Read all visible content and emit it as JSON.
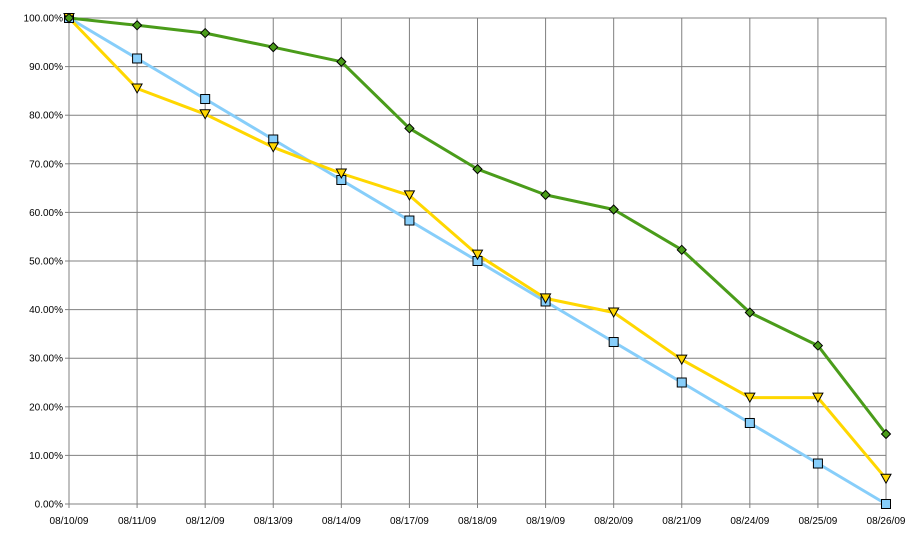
{
  "chart_data": {
    "type": "line",
    "title": "",
    "xlabel": "",
    "ylabel": "",
    "categories": [
      "08/10/09",
      "08/11/09",
      "08/12/09",
      "08/13/09",
      "08/14/09",
      "08/17/09",
      "08/18/09",
      "08/19/09",
      "08/20/09",
      "08/21/09",
      "08/24/09",
      "08/25/09",
      "08/26/09"
    ],
    "yticks": [
      "0.00%",
      "10.00%",
      "20.00%",
      "30.00%",
      "40.00%",
      "50.00%",
      "60.00%",
      "70.00%",
      "80.00%",
      "90.00%",
      "100.00%"
    ],
    "ylim": [
      0,
      100
    ],
    "grid": true,
    "legend": "none",
    "series": [
      {
        "color": "#87cefa",
        "marker": "square",
        "values": [
          100,
          91.67,
          83.33,
          75.0,
          66.67,
          58.33,
          50.0,
          41.67,
          33.33,
          25.0,
          16.67,
          8.33,
          0.0
        ]
      },
      {
        "color": "#ffd700",
        "marker": "triangle-down",
        "values": [
          100,
          85.5,
          80.2,
          73.4,
          68.0,
          63.5,
          51.3,
          42.3,
          39.4,
          29.7,
          21.9,
          21.9,
          5.2
        ]
      },
      {
        "color": "#4a9c1a",
        "marker": "diamond",
        "values": [
          100,
          98.5,
          96.9,
          94.0,
          91.0,
          77.3,
          68.9,
          63.6,
          60.6,
          52.3,
          39.4,
          32.6,
          14.4
        ]
      }
    ]
  }
}
